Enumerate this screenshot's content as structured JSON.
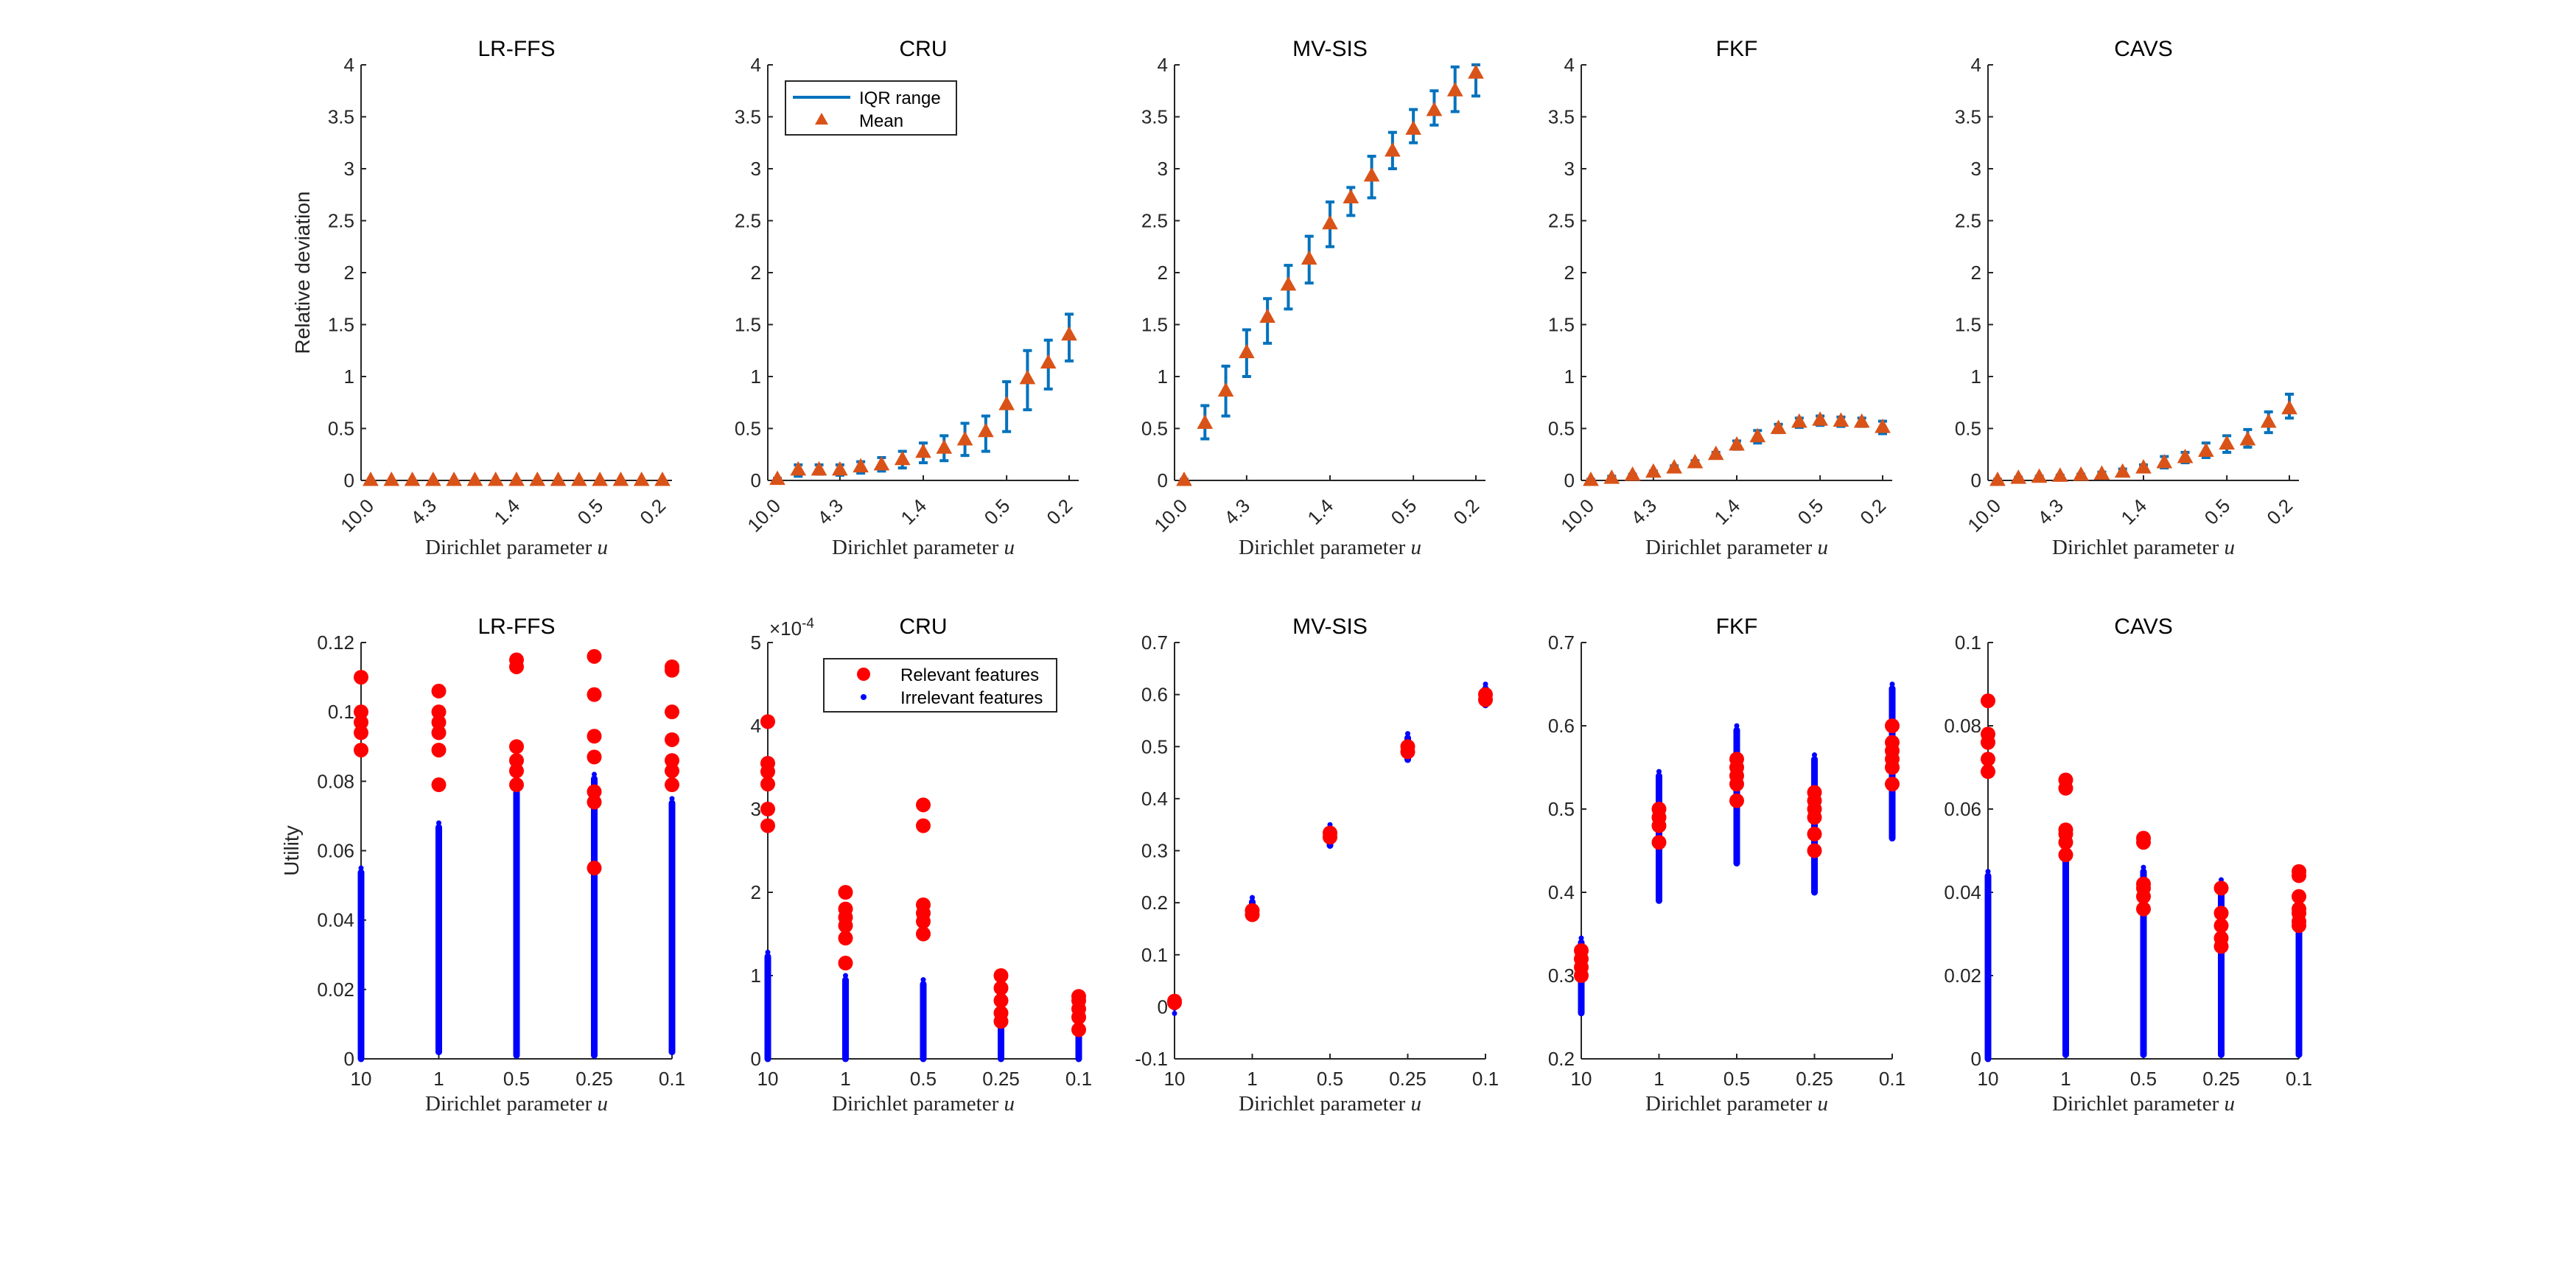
{
  "colors": {
    "iqr": "#0072BD",
    "mean": "#D95319",
    "relevant": "#FF0000",
    "irrelevant": "#0000FF",
    "axis": "#262626"
  },
  "chart_data": [
    {
      "id": "top-lrffs",
      "type": "errorbar",
      "title": "LR-FFS",
      "xlabel": "Dirichlet parameter u",
      "ylabel": "Relative deviation",
      "xticks": [
        "10.0",
        "4.3",
        "1.4",
        "0.5",
        "0.2"
      ],
      "xtick_index": [
        0,
        3,
        7,
        11,
        14
      ],
      "ylim": [
        0,
        4
      ],
      "yticks": [
        0,
        0.5,
        1,
        1.5,
        2,
        2.5,
        3,
        3.5,
        4
      ],
      "ytick_labels": [
        "0",
        "0.5",
        "1",
        "1.5",
        "2",
        "2.5",
        "3",
        "3.5",
        "4"
      ],
      "series": [
        {
          "name": "IQR range",
          "lo": [
            0,
            0,
            0,
            0,
            0,
            0,
            0,
            0,
            0,
            0,
            0,
            0,
            0,
            0,
            0
          ],
          "hi": [
            0,
            0,
            0,
            0,
            0,
            0,
            0,
            0,
            0,
            0,
            0,
            0,
            0,
            0,
            0
          ]
        },
        {
          "name": "Mean",
          "values": [
            0,
            0,
            0,
            0,
            0,
            0,
            0,
            0,
            0,
            0,
            0,
            0,
            0,
            0,
            0
          ]
        }
      ]
    },
    {
      "id": "top-cru",
      "type": "errorbar",
      "title": "CRU",
      "xlabel": "Dirichlet parameter u",
      "ylabel": "",
      "xticks": [
        "10.0",
        "4.3",
        "1.4",
        "0.5",
        "0.2"
      ],
      "xtick_index": [
        0,
        3,
        7,
        11,
        14
      ],
      "ylim": [
        0,
        4
      ],
      "yticks": [
        0,
        0.5,
        1,
        1.5,
        2,
        2.5,
        3,
        3.5,
        4
      ],
      "ytick_labels": [
        "0",
        "0.5",
        "1",
        "1.5",
        "2",
        "2.5",
        "3",
        "3.5",
        "4"
      ],
      "legend": {
        "position": "top-left",
        "entries": [
          "IQR range",
          "Mean"
        ]
      },
      "series": [
        {
          "name": "IQR range",
          "lo": [
            0,
            0.04,
            0.06,
            0.05,
            0.07,
            0.09,
            0.12,
            0.17,
            0.19,
            0.24,
            0.28,
            0.47,
            0.68,
            0.88,
            1.15
          ],
          "hi": [
            0.02,
            0.15,
            0.15,
            0.15,
            0.18,
            0.22,
            0.28,
            0.36,
            0.43,
            0.55,
            0.62,
            0.95,
            1.25,
            1.35,
            1.6
          ]
        },
        {
          "name": "Mean",
          "values": [
            0.01,
            0.1,
            0.1,
            0.1,
            0.13,
            0.15,
            0.2,
            0.27,
            0.31,
            0.39,
            0.47,
            0.73,
            0.98,
            1.13,
            1.4
          ]
        }
      ]
    },
    {
      "id": "top-mvsis",
      "type": "errorbar",
      "title": "MV-SIS",
      "xlabel": "Dirichlet parameter u",
      "ylabel": "",
      "xticks": [
        "10.0",
        "4.3",
        "1.4",
        "0.5",
        "0.2"
      ],
      "xtick_index": [
        0,
        3,
        7,
        11,
        14
      ],
      "ylim": [
        0,
        4
      ],
      "yticks": [
        0,
        0.5,
        1,
        1.5,
        2,
        2.5,
        3,
        3.5,
        4
      ],
      "ytick_labels": [
        "0",
        "0.5",
        "1",
        "1.5",
        "2",
        "2.5",
        "3",
        "3.5",
        "4"
      ],
      "series": [
        {
          "name": "IQR range",
          "lo": [
            0,
            0.4,
            0.62,
            1.0,
            1.32,
            1.65,
            1.9,
            2.25,
            2.55,
            2.72,
            3.0,
            3.25,
            3.42,
            3.55,
            3.7
          ],
          "hi": [
            0.01,
            0.72,
            1.1,
            1.45,
            1.75,
            2.07,
            2.35,
            2.68,
            2.82,
            3.12,
            3.35,
            3.57,
            3.75,
            3.98,
            4.0
          ]
        },
        {
          "name": "Mean",
          "values": [
            0,
            0.55,
            0.86,
            1.23,
            1.57,
            1.88,
            2.13,
            2.47,
            2.72,
            2.93,
            3.17,
            3.38,
            3.56,
            3.75,
            3.92
          ]
        }
      ]
    },
    {
      "id": "top-fkf",
      "type": "errorbar",
      "title": "FKF",
      "xlabel": "Dirichlet parameter u",
      "ylabel": "",
      "xticks": [
        "10.0",
        "4.3",
        "1.4",
        "0.5",
        "0.2"
      ],
      "xtick_index": [
        0,
        3,
        7,
        11,
        14
      ],
      "ylim": [
        0,
        4
      ],
      "yticks": [
        0,
        0.5,
        1,
        1.5,
        2,
        2.5,
        3,
        3.5,
        4
      ],
      "ytick_labels": [
        "0",
        "0.5",
        "1",
        "1.5",
        "2",
        "2.5",
        "3",
        "3.5",
        "4"
      ],
      "series": [
        {
          "name": "IQR range",
          "lo": [
            0,
            0.02,
            0.04,
            0.07,
            0.11,
            0.16,
            0.23,
            0.3,
            0.36,
            0.46,
            0.51,
            0.53,
            0.52,
            0.52,
            0.45
          ],
          "hi": [
            0.01,
            0.04,
            0.06,
            0.09,
            0.14,
            0.19,
            0.27,
            0.38,
            0.48,
            0.54,
            0.6,
            0.62,
            0.61,
            0.6,
            0.57
          ]
        },
        {
          "name": "Mean",
          "values": [
            0,
            0.02,
            0.05,
            0.08,
            0.12,
            0.17,
            0.25,
            0.34,
            0.42,
            0.5,
            0.56,
            0.58,
            0.57,
            0.56,
            0.51
          ]
        }
      ]
    },
    {
      "id": "top-cavs",
      "type": "errorbar",
      "title": "CAVS",
      "xlabel": "Dirichlet parameter u",
      "ylabel": "",
      "xticks": [
        "10.0",
        "4.3",
        "1.4",
        "0.5",
        "0.2"
      ],
      "xtick_index": [
        0,
        3,
        7,
        11,
        14
      ],
      "ylim": [
        0,
        4
      ],
      "yticks": [
        0,
        0.5,
        1,
        1.5,
        2,
        2.5,
        3,
        3.5,
        4
      ],
      "ytick_labels": [
        "0",
        "0.5",
        "1",
        "1.5",
        "2",
        "2.5",
        "3",
        "3.5",
        "4"
      ],
      "series": [
        {
          "name": "IQR range",
          "lo": [
            0,
            0.01,
            0.02,
            0.03,
            0.03,
            0.05,
            0.06,
            0.09,
            0.12,
            0.17,
            0.22,
            0.27,
            0.32,
            0.46,
            0.6
          ],
          "hi": [
            0.01,
            0.03,
            0.04,
            0.05,
            0.06,
            0.08,
            0.11,
            0.15,
            0.23,
            0.27,
            0.36,
            0.43,
            0.49,
            0.66,
            0.83
          ]
        },
        {
          "name": "Mean",
          "values": [
            0,
            0.02,
            0.03,
            0.04,
            0.05,
            0.06,
            0.08,
            0.12,
            0.17,
            0.22,
            0.28,
            0.35,
            0.39,
            0.56,
            0.69
          ]
        }
      ]
    },
    {
      "id": "bottom-lrffs",
      "type": "scatter",
      "title": "LR-FFS",
      "xlabel": "Dirichlet parameter u",
      "ylabel": "Utility",
      "xticks": [
        "10",
        "1",
        "0.5",
        "0.25",
        "0.1"
      ],
      "ylim": [
        0,
        0.12
      ],
      "yticks": [
        0,
        0.02,
        0.04,
        0.06,
        0.08,
        0.1,
        0.12
      ],
      "ytick_labels": [
        "0",
        "0.02",
        "0.04",
        "0.06",
        "0.08",
        "0.1",
        "0.12"
      ],
      "irrelevant_range": [
        [
          0,
          0.055
        ],
        [
          0.002,
          0.068
        ],
        [
          0.001,
          0.078
        ],
        [
          0.001,
          0.082
        ],
        [
          0.002,
          0.075
        ]
      ],
      "relevant": [
        [
          0.089,
          0.094,
          0.097,
          0.1,
          0.11
        ],
        [
          0.079,
          0.089,
          0.094,
          0.097,
          0.1,
          0.106
        ],
        [
          0.079,
          0.083,
          0.086,
          0.09,
          0.113,
          0.115
        ],
        [
          0.055,
          0.074,
          0.077,
          0.087,
          0.093,
          0.105,
          0.116
        ],
        [
          0.079,
          0.083,
          0.086,
          0.092,
          0.1,
          0.112,
          0.113
        ]
      ]
    },
    {
      "id": "bottom-cru",
      "type": "scatter",
      "title": "CRU",
      "xlabel": "Dirichlet parameter u",
      "ylabel": "",
      "xticks": [
        "10",
        "1",
        "0.5",
        "0.25",
        "0.1"
      ],
      "ylim": [
        0,
        5
      ],
      "yticks": [
        0,
        1,
        2,
        3,
        4,
        5
      ],
      "ytick_labels": [
        "0",
        "1",
        "2",
        "3",
        "4",
        "5"
      ],
      "y_exponent_prefix": "×10",
      "y_exponent": "-4",
      "legend": {
        "position": "top-right",
        "entries": [
          "Relevant features",
          "Irrelevant features"
        ]
      },
      "irrelevant_range": [
        [
          0,
          1.28
        ],
        [
          0,
          1.0
        ],
        [
          0,
          0.95
        ],
        [
          0,
          0.95
        ],
        [
          0,
          0.8
        ]
      ],
      "relevant": [
        [
          2.8,
          3.0,
          3.3,
          3.45,
          3.55,
          4.05
        ],
        [
          1.15,
          1.45,
          1.6,
          1.7,
          1.8,
          2.0
        ],
        [
          1.5,
          1.65,
          1.75,
          1.85,
          2.8,
          3.05
        ],
        [
          0.45,
          0.55,
          0.7,
          0.85,
          1.0
        ],
        [
          0.35,
          0.5,
          0.6,
          0.7,
          0.75
        ]
      ]
    },
    {
      "id": "bottom-mvsis",
      "type": "scatter",
      "title": "MV-SIS",
      "xlabel": "Dirichlet parameter u",
      "ylabel": "",
      "xticks": [
        "10",
        "1",
        "0.5",
        "0.25",
        "0.1"
      ],
      "ylim": [
        -0.1,
        0.7
      ],
      "yticks": [
        -0.1,
        0,
        0.1,
        0.2,
        0.3,
        0.4,
        0.5,
        0.6,
        0.7
      ],
      "ytick_labels": [
        "-0.1",
        "0",
        "0.1",
        "0.2",
        "0.3",
        "0.4",
        "0.5",
        "0.6",
        "0.7"
      ],
      "irrelevant_range": [
        [
          0.004,
          0.017
        ],
        [
          0.17,
          0.21
        ],
        [
          0.31,
          0.35
        ],
        [
          0.475,
          0.525
        ],
        [
          0.58,
          0.62
        ]
      ],
      "relevant": [
        [
          0.008,
          0.011
        ],
        [
          0.177,
          0.185
        ],
        [
          0.326,
          0.334
        ],
        [
          0.49,
          0.5
        ],
        [
          0.59,
          0.6
        ]
      ]
    },
    {
      "id": "bottom-fkf",
      "type": "scatter",
      "title": "FKF",
      "xlabel": "Dirichlet parameter u",
      "ylabel": "",
      "xticks": [
        "10",
        "1",
        "0.5",
        "0.25",
        "0.1"
      ],
      "ylim": [
        0.2,
        0.7
      ],
      "yticks": [
        0.2,
        0.3,
        0.4,
        0.5,
        0.6,
        0.7
      ],
      "ytick_labels": [
        "0.2",
        "0.3",
        "0.4",
        "0.5",
        "0.6",
        "0.7"
      ],
      "irrelevant_range": [
        [
          0.255,
          0.345
        ],
        [
          0.39,
          0.545
        ],
        [
          0.435,
          0.6
        ],
        [
          0.4,
          0.565
        ],
        [
          0.465,
          0.65
        ]
      ],
      "relevant": [
        [
          0.3,
          0.31,
          0.32,
          0.33
        ],
        [
          0.46,
          0.48,
          0.49,
          0.5
        ],
        [
          0.51,
          0.53,
          0.54,
          0.55,
          0.56
        ],
        [
          0.45,
          0.47,
          0.49,
          0.5,
          0.51,
          0.52
        ],
        [
          0.53,
          0.55,
          0.56,
          0.57,
          0.58,
          0.6
        ]
      ]
    },
    {
      "id": "bottom-cavs",
      "type": "scatter",
      "title": "CAVS",
      "xlabel": "Dirichlet parameter u",
      "ylabel": "",
      "xticks": [
        "10",
        "1",
        "0.5",
        "0.25",
        "0.1"
      ],
      "ylim": [
        0,
        0.1
      ],
      "yticks": [
        0,
        0.02,
        0.04,
        0.06,
        0.08,
        0.1
      ],
      "ytick_labels": [
        "0",
        "0.02",
        "0.04",
        "0.06",
        "0.08",
        "0.1"
      ],
      "irrelevant_range": [
        [
          0,
          0.045
        ],
        [
          0.001,
          0.05
        ],
        [
          0.001,
          0.046
        ],
        [
          0.001,
          0.043
        ],
        [
          0.001,
          0.04
        ]
      ],
      "relevant": [
        [
          0.069,
          0.072,
          0.076,
          0.078,
          0.086
        ],
        [
          0.049,
          0.052,
          0.054,
          0.055,
          0.065,
          0.067
        ],
        [
          0.036,
          0.039,
          0.041,
          0.042,
          0.052,
          0.053
        ],
        [
          0.027,
          0.029,
          0.032,
          0.035,
          0.041
        ],
        [
          0.032,
          0.033,
          0.035,
          0.036,
          0.039,
          0.044,
          0.045
        ]
      ]
    }
  ]
}
